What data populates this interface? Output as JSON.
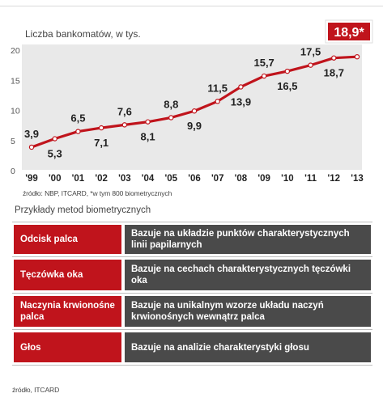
{
  "chart_data": {
    "type": "line",
    "title": "Liczba bankomatów, w tys.",
    "categories": [
      "'99",
      "'00",
      "'01",
      "'02",
      "'03",
      "'04",
      "'05",
      "'06",
      "'07",
      "'08",
      "'09",
      "'10",
      "'11",
      "'12",
      "'13"
    ],
    "values": [
      3.9,
      5.3,
      6.5,
      7.1,
      7.6,
      8.1,
      8.8,
      9.9,
      11.5,
      13.9,
      15.7,
      16.5,
      17.5,
      18.7,
      18.9
    ],
    "value_labels": [
      "3,9",
      "5,3",
      "6,5",
      "7,1",
      "7,6",
      "8,1",
      "8,8",
      "9,9",
      "11,5",
      "13,9",
      "15,7",
      "16,5",
      "17,5",
      "18,7",
      "18,9*"
    ],
    "label_position": [
      "above",
      "below",
      "above",
      "below",
      "above",
      "below",
      "above",
      "below",
      "above",
      "below",
      "above",
      "below",
      "above",
      "below",
      "highlight"
    ],
    "yticks": [
      "0",
      "5",
      "10",
      "15",
      "20"
    ],
    "ylim": [
      0,
      20
    ],
    "xlabel": "",
    "ylabel": "",
    "grid": false,
    "colors": {
      "line": "#c0141c",
      "band": "#e9e9e9",
      "marker": "#ffffff",
      "highlight": "#c0141c"
    }
  },
  "chart_source": "źródło: NBP, ITCARD, *w tym 800 biometrycznych",
  "examples": {
    "heading": "Przykłady  metod biometrycznych",
    "rows": [
      {
        "name": "Odcisk palca",
        "desc": "Bazuje na układzie punktów charakterystycznych linii papilarnych"
      },
      {
        "name": "Tęczówka oka",
        "desc": "Bazuje na cechach charakterystycznych tęczówki oka"
      },
      {
        "name": "Naczynia krwionośne palca",
        "desc": "Bazuje na unikalnym wzorze układu naczyń krwionośnych wewnątrz palca"
      },
      {
        "name": "Głos",
        "desc": "Bazuje na analizie charakterystyki głosu"
      }
    ],
    "colors": {
      "name_bg": "#c0141c",
      "desc_bg": "#4a4a4a"
    }
  },
  "table_source": "źródło, ITCARD"
}
